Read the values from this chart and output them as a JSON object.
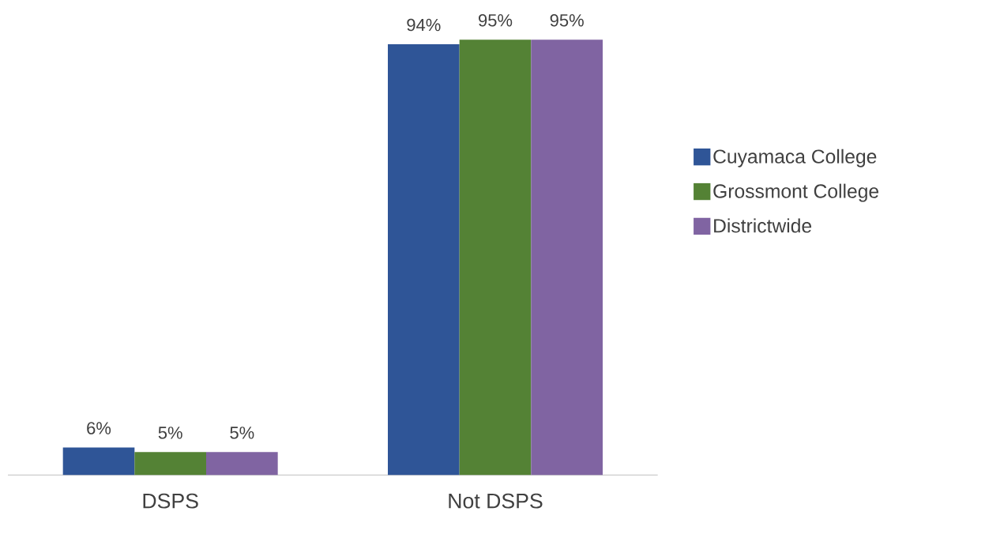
{
  "chart_data": {
    "type": "bar",
    "categories": [
      "DSPS",
      "Not DSPS"
    ],
    "series": [
      {
        "name": "Cuyamaca College",
        "color": "#2f5597",
        "values": [
          6,
          94
        ],
        "value_labels": [
          "6%",
          "94%"
        ]
      },
      {
        "name": "Grossmont College",
        "color": "#548235",
        "values": [
          5,
          95
        ],
        "value_labels": [
          "5%",
          "95%"
        ]
      },
      {
        "name": "Districtwide",
        "color": "#8064a2",
        "values": [
          5,
          95
        ],
        "value_labels": [
          "5%",
          "95%"
        ]
      }
    ],
    "legend": "right"
  }
}
